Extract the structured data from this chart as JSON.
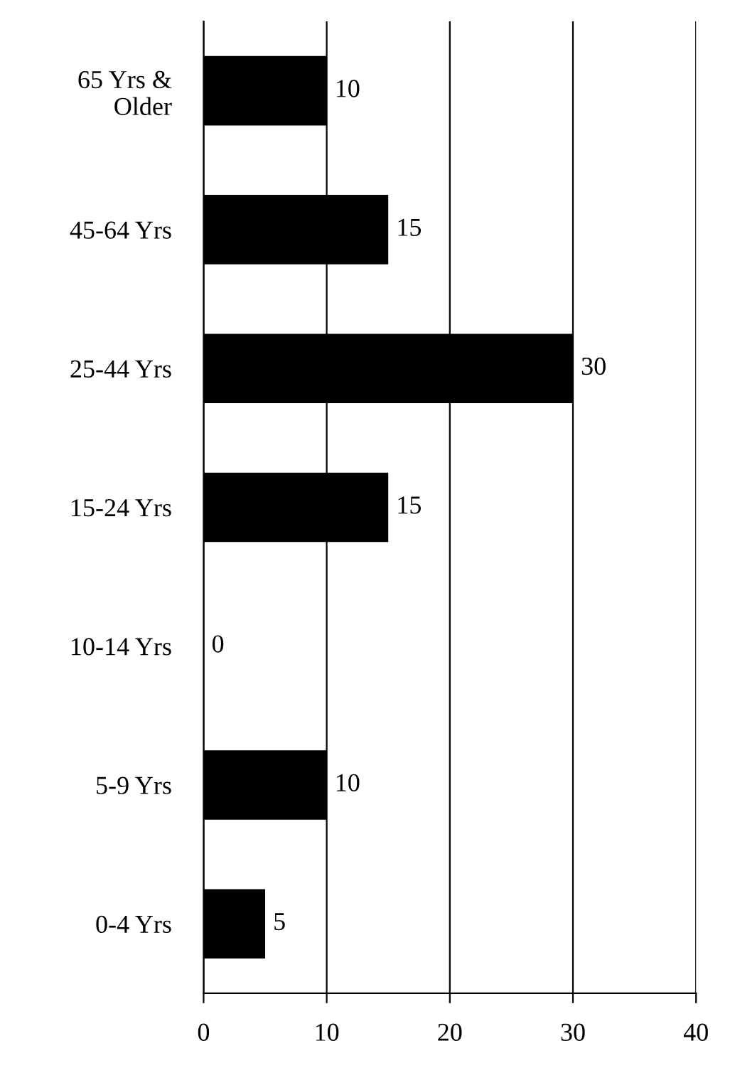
{
  "chart_data": {
    "type": "bar",
    "orientation": "horizontal",
    "categories": [
      "65 Yrs &\nOlder",
      "45-64 Yrs",
      "25-44 Yrs",
      "15-24 Yrs",
      "10-14 Yrs",
      "5-9 Yrs",
      "0-4 Yrs"
    ],
    "values": [
      10,
      15,
      30,
      15,
      0,
      10,
      5
    ],
    "color": "#000000",
    "xlim": [
      0,
      40
    ],
    "xticks": [
      0,
      10,
      20,
      30,
      40
    ],
    "grid": "x",
    "data_labels": true
  }
}
